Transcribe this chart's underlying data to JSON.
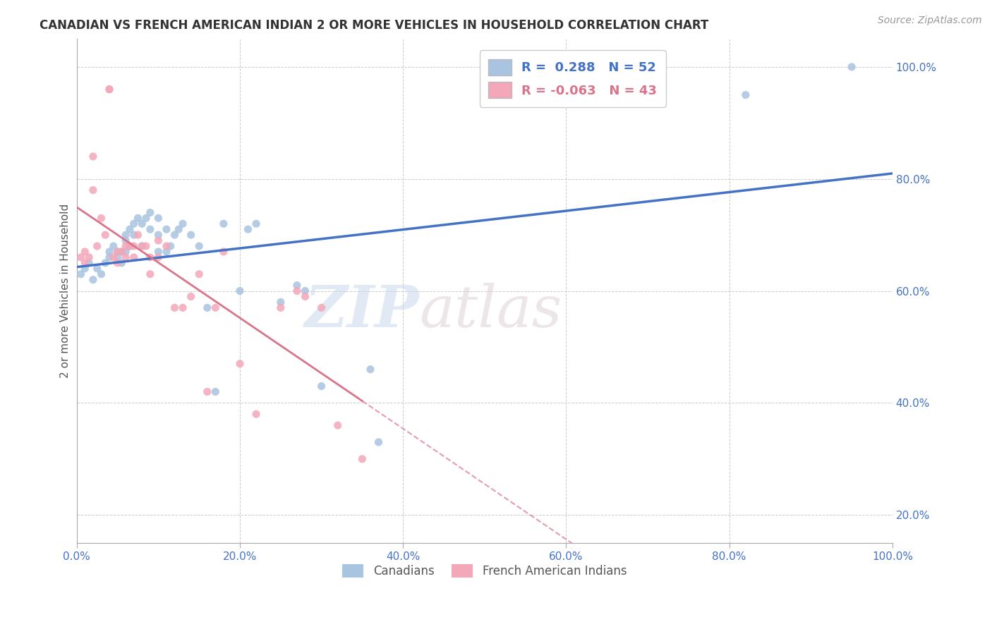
{
  "title": "CANADIAN VS FRENCH AMERICAN INDIAN 2 OR MORE VEHICLES IN HOUSEHOLD CORRELATION CHART",
  "source": "Source: ZipAtlas.com",
  "ylabel": "2 or more Vehicles in Household",
  "legend_labels": [
    "Canadians",
    "French American Indians"
  ],
  "r_canadian": 0.288,
  "n_canadian": 52,
  "r_french": -0.063,
  "n_french": 43,
  "canadian_color": "#a8c4e0",
  "french_color": "#f4a7b9",
  "canadian_line_color": "#4472c4",
  "french_line_color": "#d9748a",
  "title_color": "#333333",
  "axis_label_color": "#4472c4",
  "background_color": "#ffffff",
  "watermark_left": "ZIP",
  "watermark_right": "atlas",
  "xlim": [
    0.0,
    1.0
  ],
  "ylim": [
    0.15,
    1.05
  ],
  "xtick_vals": [
    0.0,
    0.2,
    0.4,
    0.6,
    0.8,
    1.0
  ],
  "xtick_labels": [
    "0.0%",
    "20.0%",
    "40.0%",
    "60.0%",
    "80.0%",
    "100.0%"
  ],
  "ytick_vals": [
    0.2,
    0.4,
    0.6,
    0.8,
    1.0
  ],
  "ytick_labels": [
    "20.0%",
    "40.0%",
    "60.0%",
    "80.0%",
    "100.0%"
  ],
  "canadians_x": [
    0.005,
    0.01,
    0.015,
    0.02,
    0.025,
    0.03,
    0.035,
    0.04,
    0.04,
    0.045,
    0.05,
    0.05,
    0.055,
    0.055,
    0.06,
    0.06,
    0.06,
    0.065,
    0.065,
    0.07,
    0.07,
    0.075,
    0.08,
    0.08,
    0.085,
    0.09,
    0.09,
    0.1,
    0.1,
    0.1,
    0.11,
    0.11,
    0.115,
    0.12,
    0.125,
    0.13,
    0.14,
    0.15,
    0.16,
    0.17,
    0.18,
    0.2,
    0.21,
    0.22,
    0.25,
    0.27,
    0.28,
    0.3,
    0.36,
    0.37,
    0.82,
    0.95
  ],
  "canadians_y": [
    0.63,
    0.64,
    0.65,
    0.62,
    0.64,
    0.63,
    0.65,
    0.66,
    0.67,
    0.68,
    0.67,
    0.66,
    0.67,
    0.65,
    0.7,
    0.69,
    0.67,
    0.71,
    0.68,
    0.72,
    0.7,
    0.73,
    0.72,
    0.68,
    0.73,
    0.74,
    0.71,
    0.73,
    0.7,
    0.67,
    0.71,
    0.67,
    0.68,
    0.7,
    0.71,
    0.72,
    0.7,
    0.68,
    0.57,
    0.42,
    0.72,
    0.6,
    0.71,
    0.72,
    0.58,
    0.61,
    0.6,
    0.43,
    0.46,
    0.33,
    0.95,
    1.0
  ],
  "french_x": [
    0.005,
    0.01,
    0.01,
    0.015,
    0.02,
    0.02,
    0.025,
    0.03,
    0.035,
    0.04,
    0.04,
    0.045,
    0.05,
    0.05,
    0.055,
    0.06,
    0.06,
    0.065,
    0.07,
    0.07,
    0.075,
    0.08,
    0.085,
    0.09,
    0.09,
    0.1,
    0.1,
    0.11,
    0.12,
    0.13,
    0.14,
    0.15,
    0.16,
    0.17,
    0.18,
    0.2,
    0.22,
    0.25,
    0.27,
    0.28,
    0.3,
    0.32,
    0.35
  ],
  "french_y": [
    0.66,
    0.67,
    0.65,
    0.66,
    0.84,
    0.78,
    0.68,
    0.73,
    0.7,
    0.96,
    0.96,
    0.66,
    0.67,
    0.65,
    0.67,
    0.68,
    0.66,
    0.68,
    0.68,
    0.66,
    0.7,
    0.68,
    0.68,
    0.66,
    0.63,
    0.69,
    0.66,
    0.68,
    0.57,
    0.57,
    0.59,
    0.63,
    0.42,
    0.57,
    0.67,
    0.47,
    0.38,
    0.57,
    0.6,
    0.59,
    0.57,
    0.36,
    0.3
  ]
}
